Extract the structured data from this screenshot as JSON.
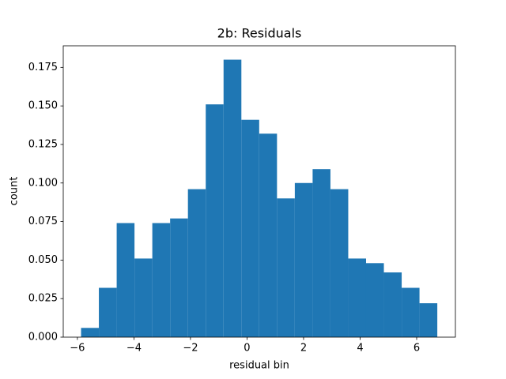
{
  "chart_data": {
    "type": "histogram",
    "title": "2b: Residuals",
    "x_label": "residual bin",
    "y_label": "count",
    "color": "#1f77b4",
    "bins": [
      -5.87,
      -5.24,
      -4.61,
      -3.98,
      -3.35,
      -2.72,
      -2.09,
      -1.46,
      -0.83,
      -0.2,
      0.43,
      1.06,
      1.69,
      2.32,
      2.95,
      3.58,
      4.21,
      4.84,
      5.47,
      6.1,
      6.73
    ],
    "values": [
      0.006,
      0.032,
      0.074,
      0.051,
      0.074,
      0.077,
      0.096,
      0.151,
      0.18,
      0.141,
      0.132,
      0.09,
      0.1,
      0.109,
      0.096,
      0.051,
      0.048,
      0.042,
      0.032,
      0.022
    ],
    "xlim": [
      -6.5,
      7.37
    ],
    "ylim": [
      0,
      0.189
    ],
    "xticks": [
      {
        "value": -6,
        "label": "−6"
      },
      {
        "value": -4,
        "label": "−4"
      },
      {
        "value": -2,
        "label": "−2"
      },
      0,
      2,
      4,
      6
    ],
    "yticks": [
      {
        "value": 0,
        "label": "0.000"
      },
      {
        "value": 0.025,
        "label": "0.025"
      },
      {
        "value": 0.05,
        "label": "0.050"
      },
      {
        "value": 0.075,
        "label": "0.075"
      },
      {
        "value": 0.1,
        "label": "0.100"
      },
      {
        "value": 0.125,
        "label": "0.125"
      },
      {
        "value": 0.15,
        "label": "0.150"
      },
      {
        "value": 0.175,
        "label": "0.175"
      }
    ]
  }
}
